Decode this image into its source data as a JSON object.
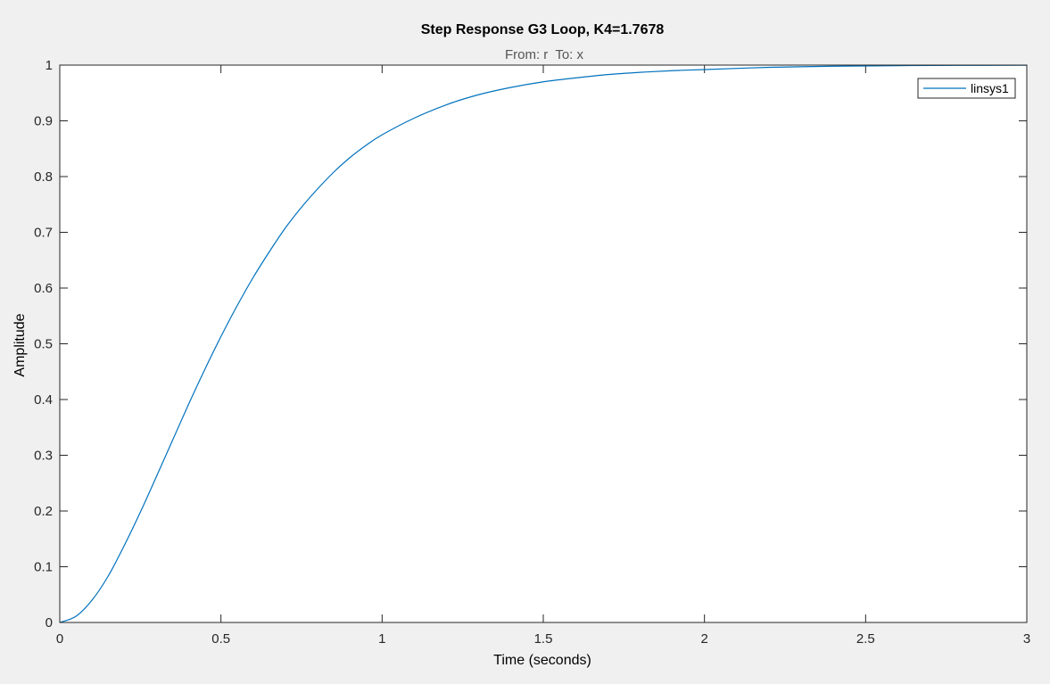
{
  "figure": {
    "background": "#f0f0f0"
  },
  "chart_data": {
    "type": "line",
    "title": "Step Response G3 Loop, K4=1.7678",
    "subtitle": "From: r  To: x",
    "xlabel": "Time (seconds)",
    "ylabel": "Amplitude",
    "xlim": [
      0,
      3
    ],
    "ylim": [
      0,
      1
    ],
    "xticks": [
      "0",
      "0.5",
      "1",
      "1.5",
      "2",
      "2.5",
      "3"
    ],
    "yticks": [
      "0",
      "0.1",
      "0.2",
      "0.3",
      "0.4",
      "0.5",
      "0.6",
      "0.7",
      "0.8",
      "0.9",
      "1"
    ],
    "grid": false,
    "legend_position": "top-right",
    "steady_state_value": 1,
    "series": [
      {
        "name": "linsys1",
        "color": "#0072bd",
        "x": [
          0,
          0.05,
          0.1,
          0.15,
          0.2,
          0.25,
          0.3,
          0.35,
          0.4,
          0.45,
          0.5,
          0.55,
          0.6,
          0.65,
          0.7,
          0.75,
          0.8,
          0.85,
          0.9,
          0.95,
          1.0,
          1.1,
          1.2,
          1.3,
          1.4,
          1.5,
          1.6,
          1.7,
          1.8,
          1.9,
          2.0,
          2.2,
          2.4,
          2.6,
          2.8,
          3.0
        ],
        "y": [
          0,
          0.011,
          0.04,
          0.083,
          0.138,
          0.198,
          0.262,
          0.327,
          0.392,
          0.454,
          0.513,
          0.568,
          0.619,
          0.665,
          0.708,
          0.745,
          0.778,
          0.808,
          0.834,
          0.856,
          0.875,
          0.905,
          0.929,
          0.947,
          0.96,
          0.97,
          0.977,
          0.983,
          0.987,
          0.99,
          0.992,
          0.996,
          0.998,
          0.999,
          0.9995,
          0.9997
        ]
      }
    ]
  }
}
